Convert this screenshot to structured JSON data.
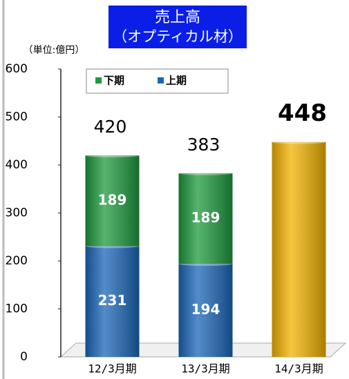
{
  "chart_data": {
    "type": "bar",
    "stacked": true,
    "title": "売上高",
    "subtitle": "（オプティカル材）",
    "y_label": "（単位:億円）",
    "categories": [
      "12/3月期",
      "13/3月期",
      "14/3月期"
    ],
    "series": [
      {
        "name": "下期",
        "color": "#1e9a3e",
        "values": [
          189,
          189,
          null
        ]
      },
      {
        "name": "上期",
        "color": "#1a66b8",
        "values": [
          231,
          194,
          null
        ]
      },
      {
        "color": "#f2b200",
        "values": [
          null,
          null,
          448
        ]
      }
    ],
    "totals": [
      420,
      383,
      null
    ],
    "ylim": [
      0,
      600
    ],
    "yticks": [
      0,
      100,
      200,
      300,
      400,
      500,
      600
    ],
    "legend": "top-left"
  }
}
